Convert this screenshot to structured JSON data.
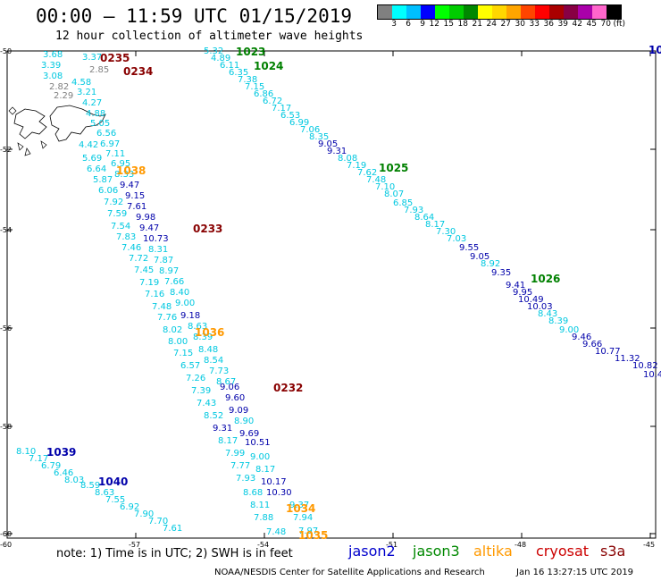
{
  "header": {
    "title": "00:00 – 11:59 UTC 01/15/2019",
    "subtitle": "12 hour collection of altimeter wave heights"
  },
  "colorbar": {
    "unit": "(ft)",
    "labels": [
      "3",
      "6",
      "9",
      "12",
      "15",
      "18",
      "21",
      "24",
      "27",
      "30",
      "33",
      "36",
      "39",
      "42",
      "45",
      "70"
    ],
    "colors": [
      "#808080",
      "#00ffff",
      "#00bfff",
      "#0000ff",
      "#00ff00",
      "#00cc00",
      "#008800",
      "#ffff00",
      "#ffd700",
      "#ffa500",
      "#ff4500",
      "#ff0000",
      "#aa0000",
      "#880044",
      "#aa00aa",
      "#ff66cc",
      "#000000"
    ]
  },
  "map": {
    "lat_labels": [
      "-50",
      "-52",
      "-54",
      "-56",
      "-58",
      "-60"
    ],
    "lon_labels": [
      "-60",
      "-57",
      "-54",
      "-51",
      "-48",
      "-45"
    ],
    "lon_range": [
      -60,
      -45
    ],
    "lat_range": [
      -60,
      -50
    ],
    "colors": {
      "c": "#00c8e0",
      "g": "#808080",
      "b": "#0000aa",
      "dg": "#008000",
      "o": "#ff9900",
      "m": "#880000"
    }
  },
  "tracks": [
    {
      "name": "track-center",
      "points": [
        [
          "3.68",
          "c"
        ],
        [
          "3.39",
          "c"
        ],
        [
          "3.08",
          "c"
        ],
        [
          "2.82",
          "g"
        ],
        [
          "2.29",
          "g"
        ],
        [
          "4.58",
          "c"
        ],
        [
          "3.21",
          "c"
        ],
        [
          "4.27",
          "c"
        ],
        [
          "4.88",
          "c"
        ],
        [
          "5.05",
          "c"
        ],
        [
          "6.56",
          "c"
        ],
        [
          "6.97",
          "c"
        ],
        [
          "7.11",
          "c"
        ],
        [
          "6.95",
          "c"
        ],
        [
          "8.33",
          "c"
        ],
        [
          "9.47",
          "b"
        ],
        [
          "9.15",
          "b"
        ],
        [
          "7.61",
          "b"
        ],
        [
          "9.98",
          "b"
        ],
        [
          "9.47",
          "b"
        ],
        [
          "10.73",
          "b"
        ],
        [
          "8.31",
          "c"
        ],
        [
          "7.87",
          "c"
        ],
        [
          "8.97",
          "c"
        ],
        [
          "7.66",
          "c"
        ],
        [
          "8.40",
          "c"
        ],
        [
          "9.00",
          "c"
        ],
        [
          "9.18",
          "b"
        ],
        [
          "8.63",
          "c"
        ],
        [
          "8.39",
          "c"
        ],
        [
          "8.48",
          "c"
        ],
        [
          "8.54",
          "c"
        ],
        [
          "7.73",
          "c"
        ],
        [
          "8.67",
          "c"
        ],
        [
          "9.06",
          "b"
        ],
        [
          "9.60",
          "b"
        ],
        [
          "9.09",
          "b"
        ],
        [
          "8.90",
          "c"
        ],
        [
          "9.69",
          "b"
        ],
        [
          "10.51",
          "b"
        ],
        [
          "9.00",
          "c"
        ],
        [
          "8.17",
          "c"
        ],
        [
          "10.17",
          "b"
        ],
        [
          "10.30",
          "b"
        ],
        [
          "9.37",
          "c"
        ],
        [
          "7.94",
          "c"
        ],
        [
          "7.97",
          "c"
        ]
      ]
    },
    {
      "name": "track-left-upper",
      "points": [
        [
          "3.37",
          "c"
        ],
        [
          "2.85",
          "g"
        ],
        [
          "4.42",
          "c"
        ],
        [
          "5.69",
          "c"
        ],
        [
          "6.64",
          "c"
        ],
        [
          "5.87",
          "c"
        ],
        [
          "6.06",
          "c"
        ],
        [
          "7.92",
          "c"
        ],
        [
          "7.59",
          "c"
        ],
        [
          "7.54",
          "c"
        ],
        [
          "7.83",
          "c"
        ],
        [
          "7.46",
          "c"
        ],
        [
          "7.72",
          "c"
        ],
        [
          "7.45",
          "c"
        ],
        [
          "7.19",
          "c"
        ],
        [
          "7.16",
          "c"
        ],
        [
          "7.48",
          "c"
        ],
        [
          "7.76",
          "c"
        ],
        [
          "8.02",
          "c"
        ],
        [
          "8.00",
          "c"
        ],
        [
          "7.15",
          "c"
        ],
        [
          "6.57",
          "c"
        ],
        [
          "7.26",
          "c"
        ],
        [
          "7.39",
          "c"
        ],
        [
          "7.43",
          "c"
        ],
        [
          "8.52",
          "c"
        ],
        [
          "9.31",
          "b"
        ],
        [
          "8.17",
          "c"
        ],
        [
          "7.99",
          "c"
        ],
        [
          "7.77",
          "c"
        ],
        [
          "7.93",
          "c"
        ],
        [
          "8.68",
          "c"
        ],
        [
          "8.11",
          "c"
        ],
        [
          "7.88",
          "c"
        ],
        [
          "7.48",
          "c"
        ]
      ]
    },
    {
      "name": "track-right",
      "points": [
        [
          "5.32",
          "c"
        ],
        [
          "4.89",
          "c"
        ],
        [
          "6.11",
          "c"
        ],
        [
          "6.35",
          "c"
        ],
        [
          "7.38",
          "c"
        ],
        [
          "7.15",
          "c"
        ],
        [
          "6.86",
          "c"
        ],
        [
          "6.72",
          "c"
        ],
        [
          "7.17",
          "c"
        ],
        [
          "6.53",
          "c"
        ],
        [
          "6.99",
          "c"
        ],
        [
          "7.06",
          "c"
        ],
        [
          "8.35",
          "c"
        ],
        [
          "9.05",
          "b"
        ],
        [
          "9.31",
          "b"
        ],
        [
          "8.08",
          "c"
        ],
        [
          "7.19",
          "c"
        ],
        [
          "7.62",
          "c"
        ],
        [
          "7.48",
          "c"
        ],
        [
          "7.10",
          "c"
        ],
        [
          "8.07",
          "c"
        ],
        [
          "6.85",
          "c"
        ],
        [
          "7.93",
          "c"
        ],
        [
          "8.64",
          "c"
        ],
        [
          "8.17",
          "c"
        ],
        [
          "7.30",
          "c"
        ],
        [
          "7.03",
          "c"
        ],
        [
          "9.55",
          "b"
        ],
        [
          "9.05",
          "b"
        ],
        [
          "8.92",
          "c"
        ],
        [
          "9.35",
          "b"
        ],
        [
          "9.41",
          "b"
        ],
        [
          "9.95",
          "b"
        ],
        [
          "10.49",
          "b"
        ],
        [
          "10.03",
          "b"
        ],
        [
          "8.43",
          "c"
        ],
        [
          "8.39",
          "c"
        ],
        [
          "9.00",
          "c"
        ],
        [
          "9.46",
          "b"
        ],
        [
          "9.66",
          "b"
        ],
        [
          "10.77",
          "b"
        ],
        [
          "11.32",
          "b"
        ],
        [
          "10.82",
          "b"
        ],
        [
          "10.4",
          "b"
        ]
      ]
    },
    {
      "name": "track-lower-left",
      "points": [
        [
          "8.10",
          "c"
        ],
        [
          "7.17",
          "c"
        ],
        [
          "6.79",
          "c"
        ],
        [
          "6.46",
          "c"
        ],
        [
          "8.03",
          "c"
        ],
        [
          "8.59",
          "c"
        ],
        [
          "8.63",
          "c"
        ],
        [
          "7.55",
          "c"
        ],
        [
          "6.92",
          "c"
        ],
        [
          "7.90",
          "c"
        ],
        [
          "7.70",
          "c"
        ],
        [
          "7.61",
          "c"
        ]
      ]
    }
  ],
  "pass_labels": [
    {
      "text": "0235",
      "color": "m"
    },
    {
      "text": "0234",
      "color": "m"
    },
    {
      "text": "1023",
      "color": "dg"
    },
    {
      "text": "1024",
      "color": "dg"
    },
    {
      "text": "1038",
      "color": "o"
    },
    {
      "text": "1025",
      "color": "dg"
    },
    {
      "text": "0233",
      "color": "m"
    },
    {
      "text": "1026",
      "color": "dg"
    },
    {
      "text": "1036",
      "color": "o"
    },
    {
      "text": "0232",
      "color": "m"
    },
    {
      "text": "1039",
      "color": "b"
    },
    {
      "text": "1040",
      "color": "b"
    },
    {
      "text": "1034",
      "color": "o"
    },
    {
      "text": "1035",
      "color": "o"
    },
    {
      "text": "10",
      "color": "b"
    }
  ],
  "footer": {
    "note": "note:  1) Time is in UTC;  2) SWH is in feet",
    "satellites": [
      {
        "name": "jason2",
        "color": "#0000cc"
      },
      {
        "name": "jason3",
        "color": "#008800"
      },
      {
        "name": "altika",
        "color": "#ff9900"
      },
      {
        "name": "cryosat",
        "color": "#cc0000"
      },
      {
        "name": "s3a",
        "color": "#880000"
      }
    ],
    "credit": "NOAA/NESDIS Center for Satellite Applications and Research",
    "timestamp": "Jan 16 13:27:15 UTC 2019"
  }
}
